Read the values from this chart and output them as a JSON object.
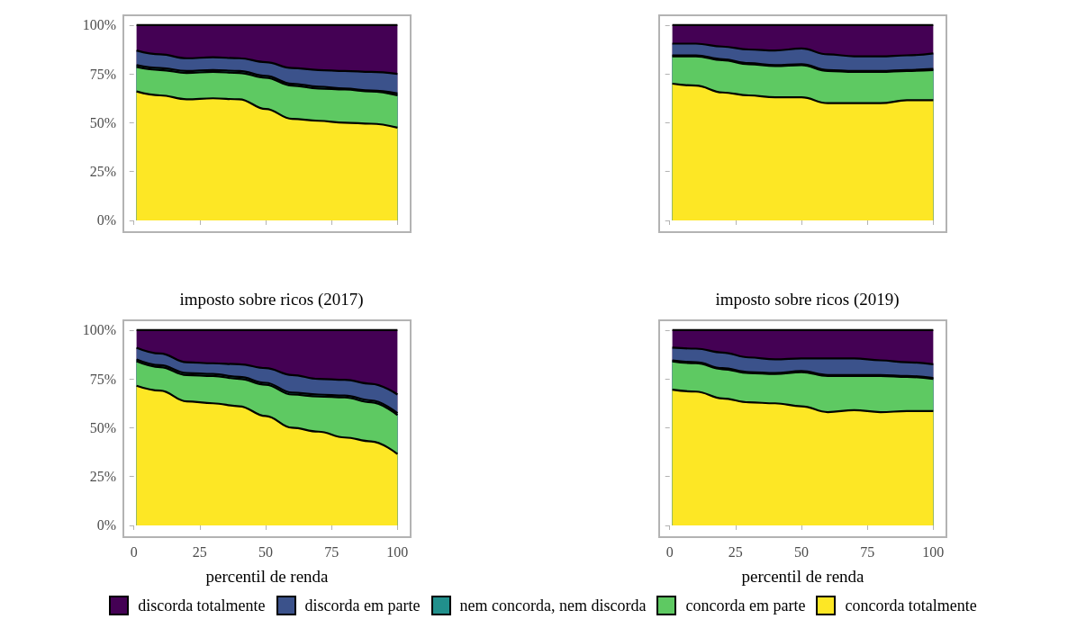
{
  "chart_data": [
    {
      "type": "area",
      "stacked": true,
      "tick_labels": "y",
      "legend": "bottom",
      "x": [
        1,
        10,
        20,
        30,
        40,
        50,
        60,
        70,
        80,
        90,
        100
      ],
      "xlim": [
        -4,
        105
      ],
      "xticks": [
        0,
        25,
        50,
        75,
        100
      ],
      "ylim": [
        -6,
        105
      ],
      "yticks": [
        {
          "value": 0,
          "label": "0%"
        },
        {
          "value": 25,
          "label": "25%"
        },
        {
          "value": 50,
          "label": "50%"
        },
        {
          "value": 75,
          "label": "75%"
        },
        {
          "value": 100,
          "label": "100%"
        }
      ],
      "grid": false,
      "series": [
        {
          "name": "concorda totalmente",
          "color": "#fde725",
          "values": [
            66,
            64,
            62,
            62.5,
            62,
            57,
            52,
            51,
            50,
            49.5,
            47.5
          ]
        },
        {
          "name": "concorda em parte",
          "color": "#5ec962",
          "values": [
            12.5,
            13,
            13.5,
            13.5,
            13.5,
            16,
            17,
            16.5,
            17,
            16.5,
            16.5
          ]
        },
        {
          "name": "nem concorda, nem discorda",
          "color": "#21908c",
          "values": [
            1,
            1,
            1,
            1,
            1,
            1,
            1,
            1,
            0.5,
            0.5,
            1
          ]
        },
        {
          "name": "discorda em parte",
          "color": "#3b528b",
          "values": [
            7.5,
            7,
            6.5,
            6.5,
            6.5,
            7,
            8,
            8.5,
            9,
            9.5,
            10
          ]
        },
        {
          "name": "discorda totalmente",
          "color": "#440154",
          "values": [
            13,
            15,
            17,
            16.5,
            17,
            19,
            22,
            23,
            23.5,
            24,
            25
          ]
        }
      ]
    },
    {
      "type": "area",
      "stacked": true,
      "tick_labels": false,
      "legend": "bottom",
      "x": [
        1,
        10,
        20,
        30,
        40,
        50,
        60,
        70,
        80,
        90,
        100
      ],
      "xlim": [
        -4,
        105
      ],
      "xticks": [
        0,
        25,
        50,
        75,
        100
      ],
      "ylim": [
        -6,
        105
      ],
      "yticks": [
        0,
        25,
        50,
        75,
        100
      ],
      "grid": false,
      "series": [
        {
          "name": "concorda totalmente",
          "color": "#fde725",
          "values": [
            70,
            69,
            65.5,
            64,
            63,
            63,
            60,
            60,
            60,
            61.5,
            61.5
          ]
        },
        {
          "name": "concorda em parte",
          "color": "#5ec962",
          "values": [
            14,
            15,
            16.5,
            16,
            16,
            16.5,
            16.5,
            16,
            16,
            15,
            15.5
          ]
        },
        {
          "name": "nem concorda, nem discorda",
          "color": "#21908c",
          "values": [
            0.5,
            0.5,
            0.5,
            0.5,
            0.5,
            0.5,
            0.5,
            0.5,
            0.5,
            0.5,
            0.5
          ]
        },
        {
          "name": "discorda em parte",
          "color": "#3b528b",
          "values": [
            6,
            6,
            6.5,
            7,
            7.5,
            8,
            8,
            7.5,
            7.5,
            7.5,
            8
          ]
        },
        {
          "name": "discorda totalmente",
          "color": "#440154",
          "values": [
            9.5,
            9.5,
            11,
            12.5,
            13,
            12,
            15,
            16,
            16,
            15.5,
            14.5
          ]
        }
      ]
    },
    {
      "type": "area",
      "stacked": true,
      "title": "imposto sobre ricos (2017)",
      "xlabel": "percentil de renda",
      "legend": "bottom",
      "x": [
        1,
        10,
        20,
        30,
        40,
        50,
        60,
        70,
        80,
        90,
        100
      ],
      "xlim": [
        -4,
        105
      ],
      "xticks": [
        0,
        25,
        50,
        75,
        100
      ],
      "ylim": [
        -6,
        105
      ],
      "yticks": [
        {
          "value": 0,
          "label": "0%"
        },
        {
          "value": 25,
          "label": "25%"
        },
        {
          "value": 50,
          "label": "50%"
        },
        {
          "value": 75,
          "label": "75%"
        },
        {
          "value": 100,
          "label": "100%"
        }
      ],
      "grid": false,
      "series": [
        {
          "name": "concorda totalmente",
          "color": "#fde725",
          "values": [
            71.5,
            69,
            63.5,
            62.5,
            61,
            56,
            50,
            48,
            45,
            43,
            36.5
          ]
        },
        {
          "name": "concorda em parte",
          "color": "#5ec962",
          "values": [
            12.5,
            12,
            13.5,
            14,
            14,
            16,
            17,
            18,
            20.5,
            20,
            20
          ]
        },
        {
          "name": "nem concorda, nem discorda",
          "color": "#21908c",
          "values": [
            1,
            1,
            1,
            1,
            1,
            1,
            1,
            1,
            1,
            1,
            1
          ]
        },
        {
          "name": "discorda em parte",
          "color": "#3b528b",
          "values": [
            6,
            6,
            5.5,
            5.5,
            6.5,
            7.5,
            9,
            8,
            8,
            8.5,
            9.5
          ]
        },
        {
          "name": "discorda totalmente",
          "color": "#440154",
          "values": [
            9,
            12,
            16.5,
            17,
            17.5,
            19.5,
            23,
            25,
            25.5,
            27.5,
            33
          ]
        }
      ]
    },
    {
      "type": "area",
      "stacked": true,
      "title": "imposto sobre ricos (2019)",
      "xlabel": "percentil de renda",
      "tick_labels": "x",
      "legend": "bottom",
      "x": [
        1,
        10,
        20,
        30,
        40,
        50,
        60,
        70,
        80,
        90,
        100
      ],
      "xlim": [
        -4,
        105
      ],
      "xticks": [
        0,
        25,
        50,
        75,
        100
      ],
      "ylim": [
        -6,
        105
      ],
      "yticks": [
        0,
        25,
        50,
        75,
        100
      ],
      "grid": false,
      "series": [
        {
          "name": "concorda totalmente",
          "color": "#fde725",
          "values": [
            69.5,
            68.5,
            65,
            63,
            62.5,
            61,
            58,
            59,
            58,
            58.5,
            58.5
          ]
        },
        {
          "name": "concorda em parte",
          "color": "#5ec962",
          "values": [
            14.5,
            14.5,
            15,
            15,
            15,
            17.5,
            18.5,
            17.5,
            18.5,
            17.5,
            16.5
          ]
        },
        {
          "name": "nem concorda, nem discorda",
          "color": "#21908c",
          "values": [
            0.5,
            0.5,
            0.5,
            0.5,
            0.5,
            0.5,
            0.5,
            0.5,
            0.5,
            0.5,
            0.5
          ]
        },
        {
          "name": "discorda em parte",
          "color": "#3b528b",
          "values": [
            6.5,
            7,
            8,
            7.5,
            7,
            6.5,
            8.5,
            8.5,
            7.5,
            7,
            7
          ]
        },
        {
          "name": "discorda totalmente",
          "color": "#440154",
          "values": [
            9,
            9.5,
            11.5,
            14,
            15,
            14.5,
            14.5,
            14.5,
            15.5,
            16.5,
            17.5
          ]
        }
      ]
    }
  ]
}
